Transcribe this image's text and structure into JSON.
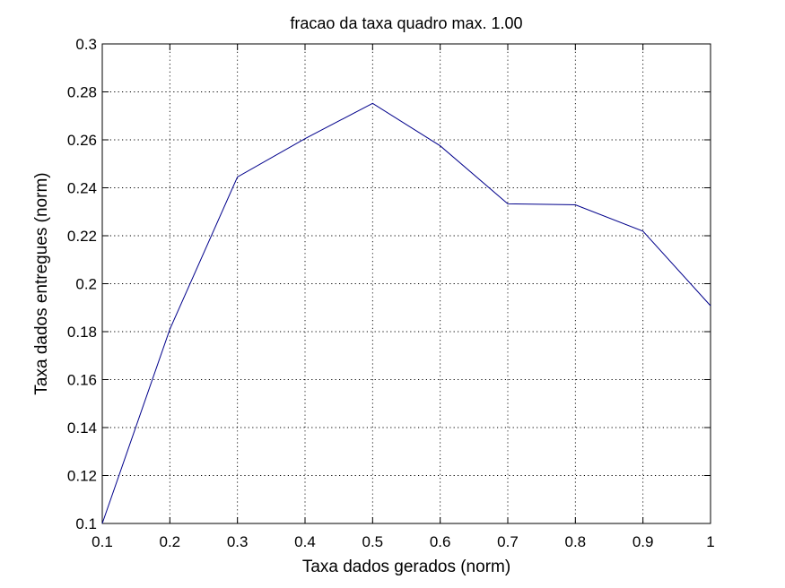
{
  "chart_data": {
    "type": "line",
    "title": "fracao da taxa quadro max. 1.00",
    "xlabel": "Taxa dados gerados (norm)",
    "ylabel": "Taxa dados entregues (norm)",
    "xlim": [
      0.1,
      1.0
    ],
    "ylim": [
      0.1,
      0.3
    ],
    "xticks": [
      "0.1",
      "0.2",
      "0.3",
      "0.4",
      "0.5",
      "0.6",
      "0.7",
      "0.8",
      "0.9",
      "1"
    ],
    "yticks": [
      "0.1",
      "0.12",
      "0.14",
      "0.16",
      "0.18",
      "0.2",
      "0.22",
      "0.24",
      "0.26",
      "0.28",
      "0.3"
    ],
    "grid": true,
    "series": [
      {
        "color": "#00008b",
        "x": [
          0.1,
          0.2,
          0.3,
          0.4,
          0.5,
          0.6,
          0.7,
          0.8,
          0.9,
          1.0
        ],
        "y": [
          0.1,
          0.181,
          0.2445,
          0.2605,
          0.2752,
          0.2575,
          0.2333,
          0.2329,
          0.2219,
          0.1908
        ]
      }
    ]
  }
}
